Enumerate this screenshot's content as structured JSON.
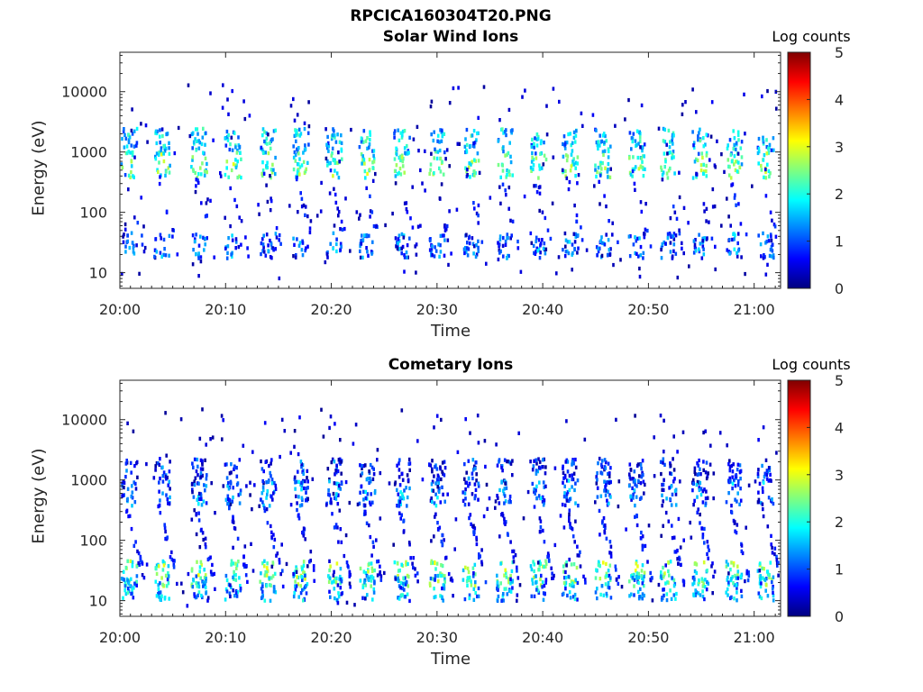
{
  "figure": {
    "suptitle": "RPCICA160304T20.PNG"
  },
  "colormap": {
    "name": "jet",
    "stops": [
      "#00007f",
      "#0000ff",
      "#007fff",
      "#00ffff",
      "#7fff7f",
      "#ffff00",
      "#ff7f00",
      "#ff0000",
      "#7f0000"
    ]
  },
  "chart_data": [
    {
      "type": "heatmap",
      "title": "Solar Wind Ions",
      "xlabel": "Time",
      "ylabel": "Energy (eV)",
      "y_scale": "log",
      "ylim": [
        5.5,
        45000
      ],
      "x_tick_labels": [
        "20:00",
        "20:10",
        "20:20",
        "20:30",
        "20:40",
        "20:50",
        "21:00"
      ],
      "y_tick_labels": [
        "10",
        "100",
        "1000",
        "10000"
      ],
      "y_tick_values": [
        10,
        100,
        1000,
        10000
      ],
      "colorbar": {
        "label": "Log counts",
        "range": [
          0,
          5
        ],
        "tick_labels": [
          "0",
          "1",
          "2",
          "3",
          "4",
          "5"
        ]
      },
      "pattern": "sweep",
      "sweep_times_min": [
        0.8,
        3.9,
        7.4,
        10.6,
        13.9,
        17.0,
        20.2,
        23.3,
        26.6,
        29.9,
        33.1,
        36.3,
        39.5,
        42.5,
        45.6,
        48.8,
        51.8,
        54.8,
        58.0,
        61.0
      ],
      "bands": [
        {
          "energy_eV": 1500,
          "level": 1.8
        },
        {
          "energy_eV": 600,
          "level": 2.4
        },
        {
          "energy_eV": 28,
          "level": 1.2
        }
      ]
    },
    {
      "type": "heatmap",
      "title": "Cometary Ions",
      "xlabel": "Time",
      "ylabel": "Energy (eV)",
      "y_scale": "log",
      "ylim": [
        5.5,
        45000
      ],
      "x_tick_labels": [
        "20:00",
        "20:10",
        "20:20",
        "20:30",
        "20:40",
        "20:50",
        "21:00"
      ],
      "y_tick_labels": [
        "10",
        "100",
        "1000",
        "10000"
      ],
      "y_tick_values": [
        10,
        100,
        1000,
        10000
      ],
      "colorbar": {
        "label": "Log counts",
        "range": [
          0,
          5
        ],
        "tick_labels": [
          "0",
          "1",
          "2",
          "3",
          "4",
          "5"
        ]
      },
      "pattern": "sweep",
      "sweep_times_min": [
        0.8,
        3.9,
        7.4,
        10.6,
        13.9,
        17.0,
        20.2,
        23.3,
        26.6,
        29.9,
        33.1,
        36.3,
        39.5,
        42.5,
        45.6,
        48.8,
        51.8,
        54.8,
        58.0,
        61.0
      ],
      "bands": [
        {
          "energy_eV": 1400,
          "level": 0.9
        },
        {
          "energy_eV": 600,
          "level": 1.3
        },
        {
          "energy_eV": 28,
          "level": 2.5
        },
        {
          "energy_eV": 16,
          "level": 1.6
        }
      ]
    }
  ]
}
